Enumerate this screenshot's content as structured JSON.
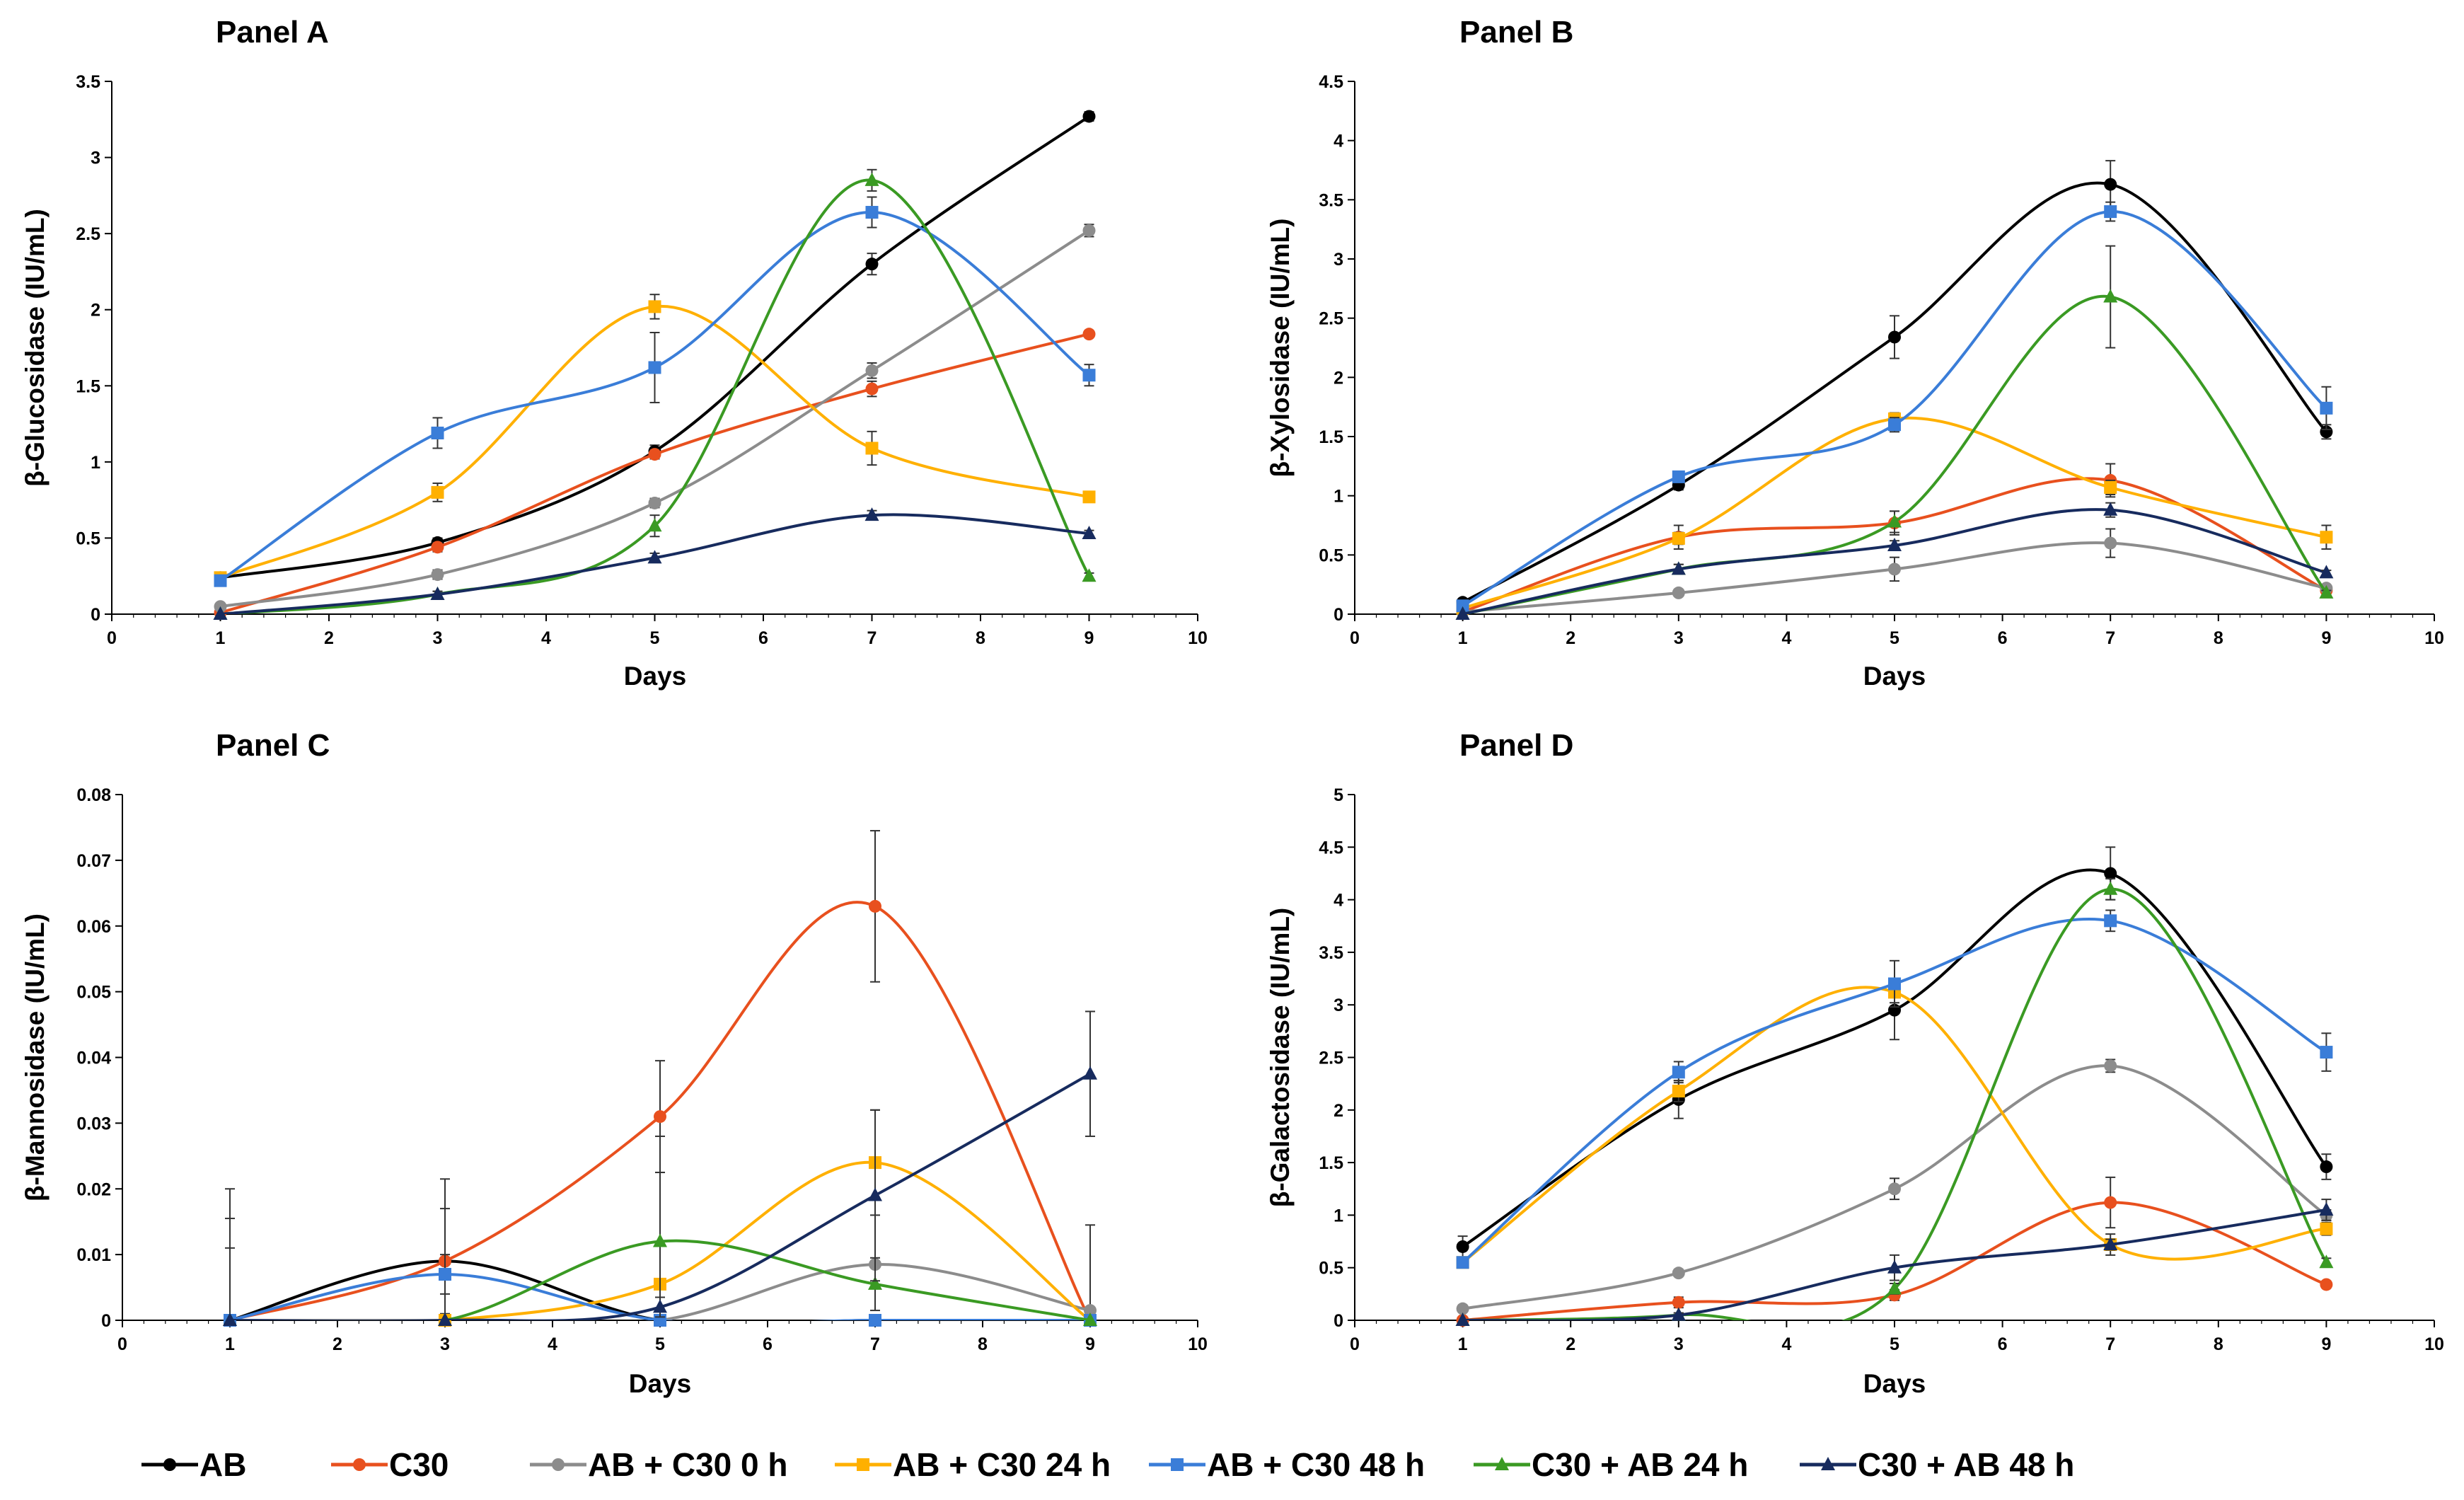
{
  "legend": [
    {
      "name": "AB",
      "color": "#000000",
      "marker": "circle"
    },
    {
      "name": "C30",
      "color": "#E8501E",
      "marker": "circle"
    },
    {
      "name": "AB + C30 0 h",
      "color": "#8C8C8C",
      "marker": "circle"
    },
    {
      "name": "AB + C30 24 h",
      "color": "#FFB000",
      "marker": "square"
    },
    {
      "name": "AB + C30 48 h",
      "color": "#3A7DD8",
      "marker": "square"
    },
    {
      "name": "C30 + AB 24 h",
      "color": "#3A9A23",
      "marker": "triangle"
    },
    {
      "name": "C30 + AB 48 h",
      "color": "#172B5E",
      "marker": "triangle"
    }
  ],
  "chart_data": [
    {
      "type": "line",
      "title": "Panel A",
      "xlabel": "Days",
      "ylabel": "β-Glucosidase (IU/mL)",
      "xlim": [
        0,
        10
      ],
      "ylim": [
        0,
        3.5
      ],
      "xticks": [
        0,
        1,
        2,
        3,
        4,
        5,
        6,
        7,
        8,
        9,
        10
      ],
      "yticks": [
        0,
        0.5,
        1,
        1.5,
        2,
        2.5,
        3,
        3.5
      ],
      "ytick_labels": [
        "0",
        "0.5",
        "1",
        "1.5",
        "2",
        "2.5",
        "3",
        "3.5"
      ],
      "x": [
        1,
        3,
        5,
        7,
        9
      ],
      "series": [
        {
          "name": "AB",
          "values": [
            0.24,
            0.47,
            1.07,
            2.3,
            3.27
          ],
          "errors": [
            0.02,
            0.03,
            0.04,
            0.07,
            0.03
          ]
        },
        {
          "name": "C30",
          "values": [
            0.01,
            0.44,
            1.05,
            1.48,
            1.84
          ],
          "errors": [
            0.01,
            0.03,
            0.03,
            0.05,
            0.02
          ]
        },
        {
          "name": "AB + C30 0 h",
          "values": [
            0.05,
            0.26,
            0.73,
            1.6,
            2.52
          ],
          "errors": [
            0.02,
            0.03,
            0.03,
            0.05,
            0.04
          ]
        },
        {
          "name": "AB + C30 24 h",
          "values": [
            0.24,
            0.8,
            2.02,
            1.09,
            0.77
          ],
          "errors": [
            0.02,
            0.06,
            0.08,
            0.11,
            0.03
          ]
        },
        {
          "name": "AB + C30 48 h",
          "values": [
            0.22,
            1.19,
            1.62,
            2.64,
            1.57
          ],
          "errors": [
            0.02,
            0.1,
            0.23,
            0.1,
            0.07
          ]
        },
        {
          "name": "C30 + AB 24 h",
          "values": [
            0.0,
            0.13,
            0.58,
            2.85,
            0.25
          ],
          "errors": [
            0.0,
            0.02,
            0.07,
            0.07,
            0.02
          ]
        },
        {
          "name": "C30 + AB 48 h",
          "values": [
            0.0,
            0.13,
            0.37,
            0.65,
            0.53
          ],
          "errors": [
            0.0,
            0.02,
            0.03,
            0.03,
            0.02
          ]
        }
      ]
    },
    {
      "type": "line",
      "title": "Panel B",
      "xlabel": "Days",
      "ylabel": "β-Xylosidase (IU/mL)",
      "xlim": [
        0,
        10
      ],
      "ylim": [
        0,
        4.5
      ],
      "xticks": [
        0,
        1,
        2,
        3,
        4,
        5,
        6,
        7,
        8,
        9,
        10
      ],
      "yticks": [
        0,
        0.5,
        1,
        1.5,
        2,
        2.5,
        3,
        3.5,
        4,
        4.5
      ],
      "ytick_labels": [
        "0",
        "0.5",
        "1",
        "1.5",
        "2",
        "2.5",
        "3",
        "3.5",
        "4",
        "4.5"
      ],
      "x": [
        1,
        3,
        5,
        7,
        9
      ],
      "series": [
        {
          "name": "AB",
          "values": [
            0.1,
            1.09,
            2.34,
            3.63,
            1.54
          ],
          "errors": [
            0.01,
            0.04,
            0.18,
            0.2,
            0.06
          ]
        },
        {
          "name": "C30",
          "values": [
            0.02,
            0.65,
            0.77,
            1.13,
            0.2
          ],
          "errors": [
            0.01,
            0.1,
            0.1,
            0.14,
            0.02
          ]
        },
        {
          "name": "AB + C30 0 h",
          "values": [
            0.02,
            0.18,
            0.38,
            0.6,
            0.22
          ],
          "errors": [
            0.01,
            0.02,
            0.1,
            0.12,
            0.02
          ]
        },
        {
          "name": "AB + C30 24 h",
          "values": [
            0.05,
            0.64,
            1.65,
            1.07,
            0.65
          ],
          "errors": [
            0.01,
            0.05,
            0.05,
            0.06,
            0.1
          ]
        },
        {
          "name": "AB + C30 48 h",
          "values": [
            0.07,
            1.16,
            1.6,
            3.4,
            1.74
          ],
          "errors": [
            0.01,
            0.04,
            0.06,
            0.08,
            0.18
          ]
        },
        {
          "name": "C30 + AB 24 h",
          "values": [
            0.0,
            0.38,
            0.78,
            2.68,
            0.18
          ],
          "errors": [
            0.0,
            0.04,
            0.09,
            0.43,
            0.02
          ]
        },
        {
          "name": "C30 + AB 48 h",
          "values": [
            0.0,
            0.38,
            0.58,
            0.88,
            0.35
          ],
          "errors": [
            0.0,
            0.04,
            0.04,
            0.06,
            0.02
          ]
        }
      ]
    },
    {
      "type": "line",
      "title": "Panel C",
      "xlabel": "Days",
      "ylabel": "β-Mannosidase (IU/mL)",
      "xlim": [
        0,
        10
      ],
      "ylim": [
        0,
        0.08
      ],
      "xticks": [
        0,
        1,
        2,
        3,
        4,
        5,
        6,
        7,
        8,
        9,
        10
      ],
      "yticks": [
        0,
        0.01,
        0.02,
        0.03,
        0.04,
        0.05,
        0.06,
        0.07,
        0.08
      ],
      "ytick_labels": [
        "0",
        "0.01",
        "0.02",
        "0.03",
        "0.04",
        "0.05",
        "0.06",
        "0.07",
        "0.08"
      ],
      "x": [
        1,
        3,
        5,
        7,
        9
      ],
      "series": [
        {
          "name": "AB",
          "values": [
            0.0,
            0.009,
            0.0,
            0.0,
            0.0
          ],
          "errors": [
            0.02,
            0.0125,
            0.0,
            0.0,
            0.0
          ]
        },
        {
          "name": "C30",
          "values": [
            0.0,
            0.009,
            0.031,
            0.063,
            0.0
          ],
          "errors": [
            0.0155,
            0.008,
            0.0085,
            0.0115,
            0.0
          ]
        },
        {
          "name": "AB + C30 0 h",
          "values": [
            0.0,
            0.0,
            0.0,
            0.0085,
            0.0015
          ],
          "errors": [
            0.011,
            0.0,
            0.0,
            0.0,
            0.013
          ]
        },
        {
          "name": "AB + C30 24 h",
          "values": [
            0.0,
            0.0,
            0.0055,
            0.024,
            0.0
          ],
          "errors": [
            0.0,
            0.0,
            0.0225,
            0.008,
            0.0
          ]
        },
        {
          "name": "AB + C30 48 h",
          "values": [
            0.0,
            0.007,
            0.0,
            0.0,
            0.0
          ],
          "errors": [
            0.0,
            0.003,
            0.0,
            0.0,
            0.0
          ]
        },
        {
          "name": "C30 + AB 24 h",
          "values": [
            0.0,
            0.0,
            0.012,
            0.0055,
            0.0
          ],
          "errors": [
            0.0,
            0.0,
            0.0105,
            0.004,
            0.0
          ]
        },
        {
          "name": "C30 + AB 48 h",
          "values": [
            0.0,
            0.0,
            0.002,
            0.019,
            0.0375
          ],
          "errors": [
            0.0,
            0.0,
            0.0015,
            0.013,
            0.0095
          ]
        }
      ]
    },
    {
      "type": "line",
      "title": "Panel D",
      "xlabel": "Days",
      "ylabel": "β-Galactosidase (IU/mL)",
      "xlim": [
        0,
        10
      ],
      "ylim": [
        0,
        5
      ],
      "xticks": [
        0,
        1,
        2,
        3,
        4,
        5,
        6,
        7,
        8,
        9,
        10
      ],
      "yticks": [
        0,
        0.5,
        1,
        1.5,
        2,
        2.5,
        3,
        3.5,
        4,
        4.5,
        5
      ],
      "ytick_labels": [
        "0",
        "0.5",
        "1",
        "1.5",
        "2",
        "2.5",
        "3",
        "3.5",
        "4",
        "4.5",
        "5"
      ],
      "x": [
        1,
        3,
        5,
        7,
        9
      ],
      "series": [
        {
          "name": "AB",
          "values": [
            0.7,
            2.1,
            2.95,
            4.25,
            1.46
          ],
          "errors": [
            0.1,
            0.18,
            0.28,
            0.25,
            0.12
          ]
        },
        {
          "name": "C30",
          "values": [
            0.0,
            0.17,
            0.24,
            1.12,
            0.34
          ],
          "errors": [
            0.0,
            0.05,
            0.05,
            0.24,
            0.03
          ]
        },
        {
          "name": "AB + C30 0 h",
          "values": [
            0.11,
            0.45,
            1.25,
            2.42,
            1.0
          ],
          "errors": [
            0.02,
            0.03,
            0.1,
            0.06,
            0.05
          ]
        },
        {
          "name": "AB + C30 24 h",
          "values": [
            0.55,
            2.18,
            3.12,
            0.72,
            0.87
          ],
          "errors": [
            0.04,
            0.1,
            0.1,
            0.1,
            0.06
          ]
        },
        {
          "name": "AB + C30 48 h",
          "values": [
            0.55,
            2.36,
            3.2,
            3.8,
            2.55
          ],
          "errors": [
            0.04,
            0.1,
            0.22,
            0.1,
            0.18
          ]
        },
        {
          "name": "C30 + AB 24 h",
          "values": [
            0.0,
            0.05,
            0.3,
            4.1,
            0.55
          ],
          "errors": [
            0.0,
            0.02,
            0.05,
            0.1,
            0.04
          ]
        },
        {
          "name": "C30 + AB 48 h",
          "values": [
            0.0,
            0.05,
            0.5,
            0.72,
            1.05
          ],
          "errors": [
            0.0,
            0.02,
            0.12,
            0.05,
            0.1
          ]
        }
      ]
    }
  ]
}
